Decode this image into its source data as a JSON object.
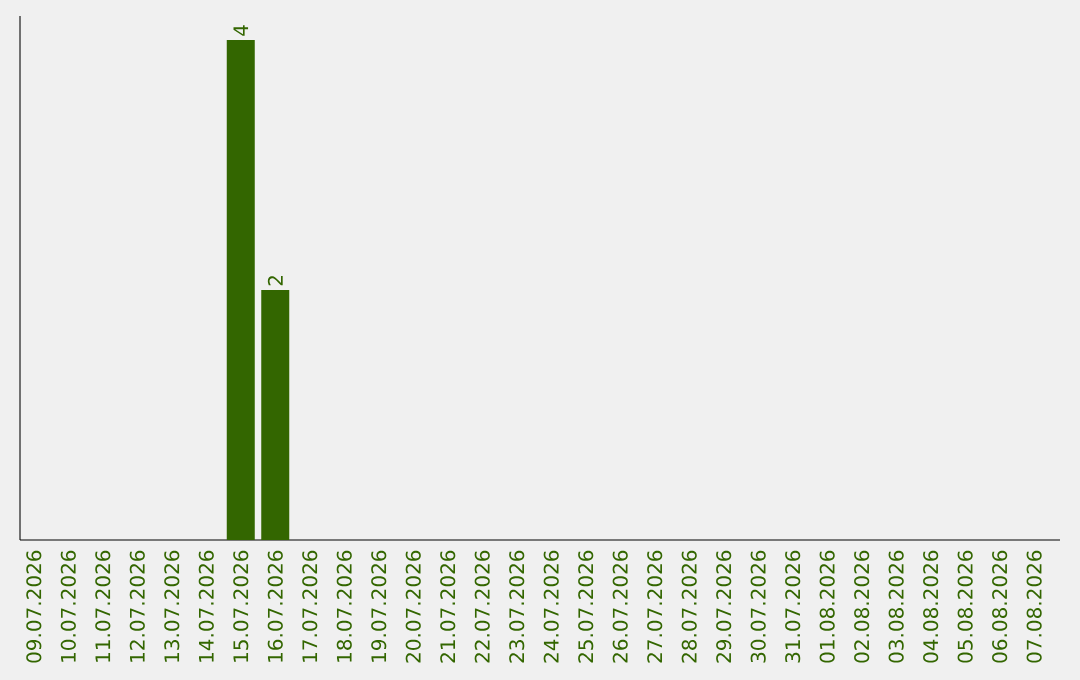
{
  "chart_data": {
    "type": "bar",
    "categories": [
      "09.07.2026",
      "10.07.2026",
      "11.07.2026",
      "12.07.2026",
      "13.07.2026",
      "14.07.2026",
      "15.07.2026",
      "16.07.2026",
      "17.07.2026",
      "18.07.2026",
      "19.07.2026",
      "20.07.2026",
      "21.07.2026",
      "22.07.2026",
      "23.07.2026",
      "24.07.2026",
      "25.07.2026",
      "26.07.2026",
      "27.07.2026",
      "28.07.2026",
      "29.07.2026",
      "30.07.2026",
      "31.07.2026",
      "01.08.2026",
      "02.08.2026",
      "03.08.2026",
      "04.08.2026",
      "05.08.2026",
      "06.08.2026",
      "07.08.2026"
    ],
    "values": [
      0,
      0,
      0,
      0,
      0,
      0,
      4,
      2,
      0,
      0,
      0,
      0,
      0,
      0,
      0,
      0,
      0,
      0,
      0,
      0,
      0,
      0,
      0,
      0,
      0,
      0,
      0,
      0,
      0,
      0
    ],
    "value_labels": [
      null,
      null,
      null,
      null,
      null,
      null,
      "4",
      "2",
      null,
      null,
      null,
      null,
      null,
      null,
      null,
      null,
      null,
      null,
      null,
      null,
      null,
      null,
      null,
      null,
      null,
      null,
      null,
      null,
      null,
      null
    ],
    "color": "#336600"
  }
}
